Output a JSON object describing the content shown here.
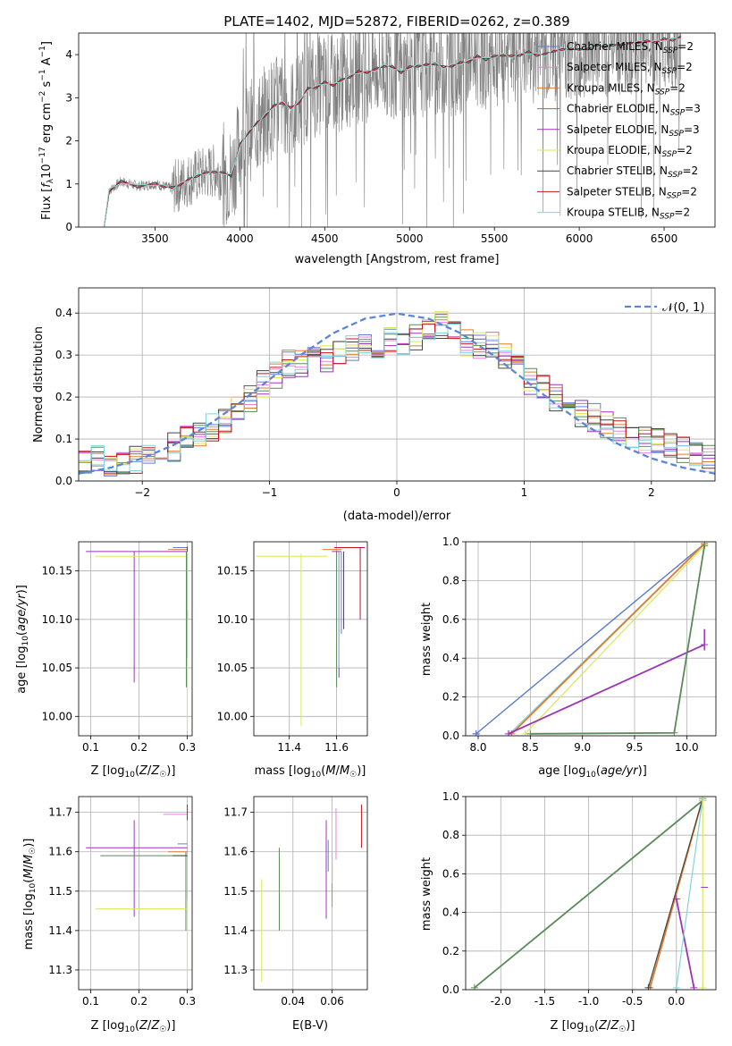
{
  "colors": {
    "Chabrier MILES": "#5b7fd9",
    "Salpeter MILES": "#e87fe0",
    "Kroupa MILES": "#e07b2e",
    "Chabrier ELODIE": "#5a8a5a",
    "Salpeter ELODIE": "#9a35b8",
    "Kroupa ELODIE": "#d8e85a",
    "Chabrier STELIB": "#444444",
    "Salpeter STELIB": "#c4161c",
    "Kroupa STELIB": "#80d4dc",
    "data": "#808080"
  },
  "chart_data": [
    {
      "id": "spectrum",
      "type": "line",
      "title": "PLATE=1402, MJD=52872, FIBERID=0262, z=0.389",
      "xlabel": "wavelength [Angstrom, rest frame]",
      "ylabel": "Flux [f_λ10^{-17} erg cm^{-2} s^{-1} A^{-1}]",
      "xlim": [
        3050,
        6800
      ],
      "ylim": [
        0,
        4.5
      ],
      "xticks": [
        3500,
        4000,
        4500,
        5000,
        5500,
        6000,
        6500
      ],
      "yticks": [
        0,
        1,
        2,
        3,
        4
      ],
      "grid": false,
      "legend": [
        "Chabrier MILES, N_SSP=2",
        "Salpeter MILES, N_SSP=2",
        "Kroupa MILES, N_SSP=2",
        "Chabrier ELODIE, N_SSP=3",
        "Salpeter ELODIE, N_SSP=3",
        "Kroupa ELODIE, N_SSP=2",
        "Chabrier STELIB, N_SSP=2",
        "Salpeter STELIB, N_SSP=2",
        "Kroupa STELIB, N_SSP=2"
      ],
      "legend_loc": "upper right",
      "model_x": [
        3200,
        3230,
        3300,
        3400,
        3500,
        3550,
        3600,
        3650,
        3700,
        3750,
        3800,
        3850,
        3900,
        3950,
        4000,
        4050,
        4100,
        4150,
        4200,
        4250,
        4300,
        4350,
        4400,
        4450,
        4500,
        4550,
        4600,
        4650,
        4700,
        4750,
        4800,
        4850,
        4900,
        4950,
        5000,
        5050,
        5100,
        5150,
        5200,
        5250,
        5300,
        5350,
        5400,
        5450,
        5500,
        5550,
        5600,
        5650,
        5700,
        5750,
        5800,
        5850,
        5900,
        5950,
        6000,
        6050,
        6100,
        6150,
        6200,
        6250,
        6300,
        6350,
        6400,
        6450,
        6500,
        6550,
        6600
      ],
      "model_y": [
        0.0,
        0.85,
        1.05,
        0.95,
        1.0,
        0.95,
        0.9,
        1.0,
        1.1,
        1.2,
        1.25,
        1.3,
        1.25,
        1.2,
        1.9,
        2.2,
        2.4,
        2.6,
        2.8,
        2.9,
        2.75,
        2.9,
        3.2,
        3.25,
        3.35,
        3.3,
        3.4,
        3.5,
        3.6,
        3.6,
        3.65,
        3.75,
        3.7,
        3.6,
        3.7,
        3.75,
        3.75,
        3.8,
        3.7,
        3.75,
        3.8,
        3.85,
        3.95,
        3.9,
        3.95,
        4.0,
        3.95,
        4.0,
        4.05,
        4.0,
        4.0,
        4.1,
        4.1,
        4.15,
        4.1,
        4.15,
        4.2,
        4.2,
        4.2,
        4.25,
        4.25,
        4.3,
        4.3,
        4.3,
        4.35,
        4.35,
        4.4
      ]
    },
    {
      "id": "residuals",
      "type": "line",
      "xlabel": "(data-model)/error",
      "ylabel": "Normed distribution",
      "xlim": [
        -2.5,
        2.5
      ],
      "ylim": [
        0,
        0.46
      ],
      "xticks": [
        -2,
        -1,
        0,
        1,
        2
      ],
      "yticks": [
        0.0,
        0.1,
        0.2,
        0.3,
        0.4
      ],
      "grid": true,
      "series": [
        {
          "name": "𝒩(0, 1)",
          "style": "dashed",
          "x": [
            -2.5,
            -2.25,
            -2.0,
            -1.75,
            -1.5,
            -1.25,
            -1.0,
            -0.75,
            -0.5,
            -0.25,
            0.0,
            0.25,
            0.5,
            0.75,
            1.0,
            1.25,
            1.5,
            1.75,
            2.0,
            2.25,
            2.5
          ],
          "y": [
            0.0175,
            0.0317,
            0.054,
            0.0863,
            0.1295,
            0.1826,
            0.242,
            0.3011,
            0.3521,
            0.3867,
            0.3989,
            0.3867,
            0.3521,
            0.3011,
            0.242,
            0.1826,
            0.1295,
            0.0863,
            0.054,
            0.0317,
            0.0175
          ]
        }
      ],
      "hist_bin_width": 0.1,
      "hist_centers": [
        -2.45,
        -2.35,
        -2.25,
        -2.15,
        -2.05,
        -1.95,
        -1.85,
        -1.75,
        -1.65,
        -1.55,
        -1.45,
        -1.35,
        -1.25,
        -1.15,
        -1.05,
        -0.95,
        -0.85,
        -0.75,
        -0.65,
        -0.55,
        -0.45,
        -0.35,
        -0.25,
        -0.15,
        -0.05,
        0.05,
        0.15,
        0.25,
        0.35,
        0.45,
        0.55,
        0.65,
        0.75,
        0.85,
        0.95,
        1.05,
        1.15,
        1.25,
        1.35,
        1.45,
        1.55,
        1.65,
        1.75,
        1.85,
        1.95,
        2.05,
        2.15,
        2.25,
        2.35,
        2.45
      ],
      "hist_base": [
        0.04,
        0.05,
        0.04,
        0.04,
        0.05,
        0.05,
        0.07,
        0.08,
        0.1,
        0.11,
        0.13,
        0.15,
        0.18,
        0.2,
        0.23,
        0.25,
        0.28,
        0.28,
        0.3,
        0.29,
        0.31,
        0.32,
        0.33,
        0.31,
        0.34,
        0.32,
        0.34,
        0.35,
        0.37,
        0.37,
        0.33,
        0.32,
        0.32,
        0.3,
        0.28,
        0.24,
        0.22,
        0.2,
        0.19,
        0.16,
        0.15,
        0.13,
        0.12,
        0.11,
        0.1,
        0.09,
        0.08,
        0.07,
        0.06,
        0.05
      ]
    },
    {
      "id": "age-vs-Z",
      "type": "scatter",
      "xlabel": "Z [log10(Z/Z☉)]",
      "ylabel": "age  [log10(age/yr)]",
      "xlim": [
        0.075,
        0.31
      ],
      "ylim": [
        9.98,
        10.18
      ],
      "xticks": [
        0.1,
        0.2,
        0.3
      ],
      "yticks": [
        10.0,
        10.05,
        10.1,
        10.15
      ],
      "grid": true
    },
    {
      "id": "age-vs-mass",
      "type": "scatter",
      "xlabel": "mass [log10(M/M☉)]",
      "xlim": [
        11.25,
        11.73
      ],
      "ylim": [
        9.98,
        10.18
      ],
      "xticks": [
        11.4,
        11.6
      ],
      "yticks": [
        10.0,
        10.05,
        10.1,
        10.15
      ],
      "grid": true
    },
    {
      "id": "weight-vs-age",
      "type": "line",
      "xlabel": "age  [log10(age/yr)]",
      "ylabel": "mass weight",
      "xlim": [
        7.88,
        10.28
      ],
      "ylim": [
        0.0,
        1.0
      ],
      "xticks": [
        8.0,
        8.5,
        9.0,
        9.5,
        10.0
      ],
      "yticks": [
        0.0,
        0.2,
        0.4,
        0.6,
        0.8,
        1.0
      ],
      "grid": true,
      "series": [
        {
          "name": "Chabrier STELIB",
          "x": [
            7.98,
            10.17
          ],
          "y": [
            0.01,
            0.99
          ]
        },
        {
          "name": "Chabrier MILES",
          "x": [
            7.98,
            10.17
          ],
          "y": [
            0.01,
            0.99
          ]
        },
        {
          "name": "Kroupa STELIB",
          "x": [
            8.3,
            10.17
          ],
          "y": [
            0.01,
            0.99
          ]
        },
        {
          "name": "Kroupa MILES",
          "x": [
            8.32,
            10.17
          ],
          "y": [
            0.01,
            0.99
          ]
        },
        {
          "name": "Kroupa ELODIE",
          "x": [
            8.45,
            10.17
          ],
          "y": [
            0.01,
            0.98
          ]
        },
        {
          "name": "Salpeter ELODIE",
          "x": [
            8.29,
            10.17
          ],
          "y": [
            0.01,
            0.47
          ]
        },
        {
          "name": "Chabrier ELODIE",
          "x": [
            8.5,
            9.88,
            10.17
          ],
          "y": [
            0.01,
            0.015,
            0.98
          ]
        }
      ]
    },
    {
      "id": "mass-vs-Z",
      "type": "scatter",
      "xlabel": "Z [log10(Z/Z☉)]",
      "ylabel": "mass [log10(M/M☉)]",
      "xlim": [
        0.075,
        0.31
      ],
      "ylim": [
        11.25,
        11.74
      ],
      "xticks": [
        0.1,
        0.2,
        0.3
      ],
      "yticks": [
        11.3,
        11.4,
        11.5,
        11.6,
        11.7
      ],
      "grid": true
    },
    {
      "id": "mass-vs-ebv",
      "type": "scatter",
      "xlabel": "E(B-V)",
      "xlim": [
        0.02,
        0.078
      ],
      "ylim": [
        11.25,
        11.74
      ],
      "xticks": [
        0.04,
        0.06
      ],
      "yticks": [
        11.3,
        11.4,
        11.5,
        11.6,
        11.7
      ],
      "grid": true
    },
    {
      "id": "weight-vs-Z",
      "type": "line",
      "xlabel": "Z [log10(Z/Z☉)]",
      "ylabel": "mass weight",
      "xlim": [
        -2.4,
        0.45
      ],
      "ylim": [
        0.0,
        1.0
      ],
      "xticks": [
        -2.0,
        -1.5,
        -1.0,
        -0.5,
        0.0
      ],
      "yticks": [
        0.0,
        0.2,
        0.4,
        0.6,
        0.8,
        1.0
      ],
      "grid": true,
      "series": [
        {
          "name": "Chabrier ELODIE",
          "x": [
            -2.3,
            0.3
          ],
          "y": [
            0.01,
            0.98
          ]
        },
        {
          "name": "Kroupa MILES",
          "x": [
            -0.3,
            0.3
          ],
          "y": [
            0.01,
            0.99
          ]
        },
        {
          "name": "Chabrier STELIB",
          "x": [
            -0.32,
            0.3
          ],
          "y": [
            0.01,
            0.99
          ]
        },
        {
          "name": "Salpeter ELODIE",
          "x": [
            0.0,
            0.2
          ],
          "y": [
            0.47,
            0.01
          ]
        },
        {
          "name": "Kroupa STELIB",
          "x": [
            0.0,
            0.3
          ],
          "y": [
            0.01,
            0.99
          ]
        },
        {
          "name": "Kroupa ELODIE",
          "x": [
            0.3,
            0.3
          ],
          "y": [
            0.01,
            0.98
          ]
        }
      ]
    }
  ]
}
